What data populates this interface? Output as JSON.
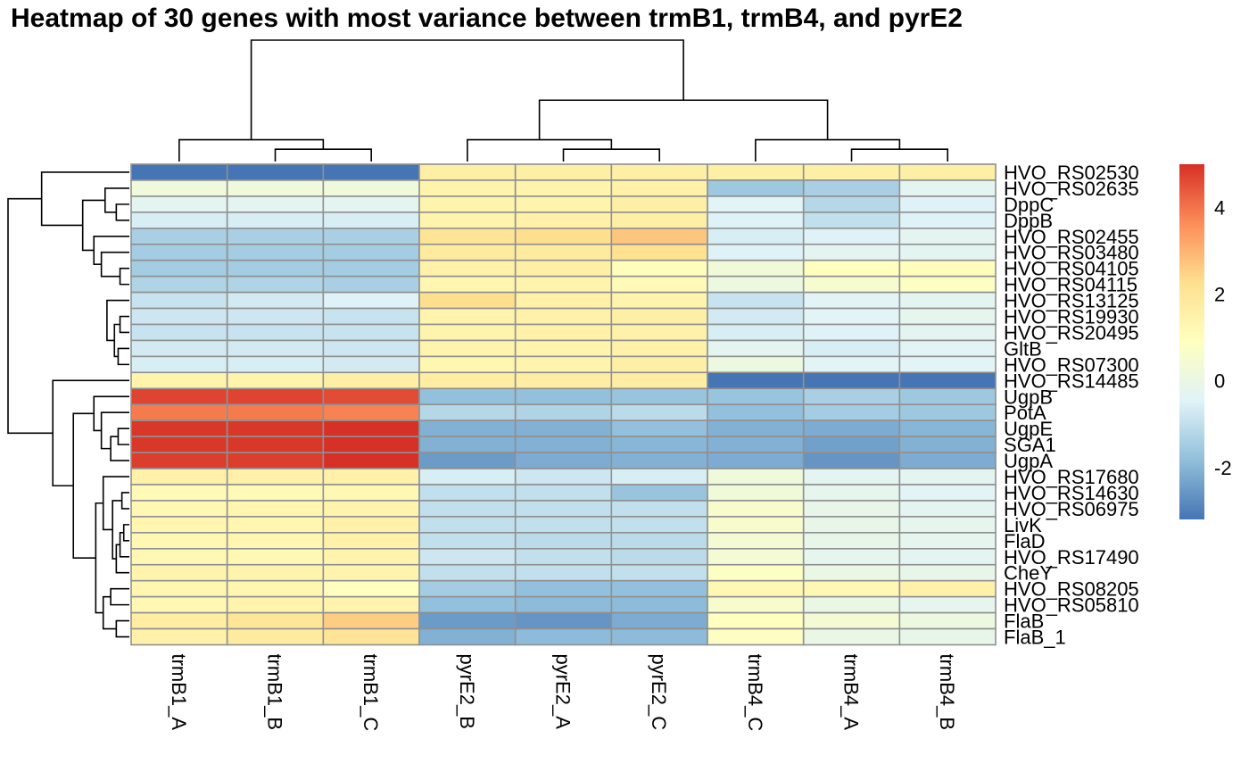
{
  "chart_data": {
    "type": "heatmap",
    "title": "Heatmap of 30 genes with most variance between trmB1, trmB4, and pyrE2",
    "columns": [
      "trmB1_A",
      "trmB1_B",
      "trmB1_C",
      "pyrE2_B",
      "pyrE2_A",
      "pyrE2_C",
      "trmB4_C",
      "trmB4_A",
      "trmB4_B"
    ],
    "rows": [
      "HVO_RS02530",
      "HVO_RS02635",
      "DppC",
      "DppB",
      "HVO_RS02455",
      "HVO_RS03480",
      "HVO_RS04105",
      "HVO_RS04115",
      "HVO_RS13125",
      "HVO_RS19930",
      "HVO_RS20495",
      "GltB",
      "HVO_RS07300",
      "HVO_RS14485",
      "UgpB",
      "PotA",
      "UgpE",
      "SGA1",
      "UgpA",
      "HVO_RS17680",
      "HVO_RS14630",
      "HVO_RS06975",
      "LivK",
      "FlaD",
      "HVO_RS17490",
      "CheY",
      "HVO_RS08205",
      "HVO_RS05810",
      "FlaB",
      "FlaB_1"
    ],
    "values": [
      [
        -3.2,
        -3.2,
        -3.2,
        1.6,
        1.6,
        1.6,
        1.6,
        1.6,
        1.6
      ],
      [
        0.2,
        0.2,
        0.2,
        1.4,
        1.4,
        1.5,
        -1.6,
        -1.4,
        -0.3
      ],
      [
        -0.3,
        -0.3,
        -0.3,
        1.4,
        1.4,
        1.6,
        -0.4,
        -1.2,
        -0.5
      ],
      [
        -0.6,
        -0.6,
        -0.6,
        1.4,
        1.5,
        1.6,
        -0.5,
        -1.0,
        -0.5
      ],
      [
        -1.4,
        -1.4,
        -1.4,
        2.1,
        2.3,
        2.7,
        -0.6,
        -0.5,
        -0.3
      ],
      [
        -1.5,
        -1.5,
        -1.5,
        1.8,
        1.8,
        2.2,
        -0.5,
        -0.3,
        -0.3
      ],
      [
        -1.5,
        -1.5,
        -1.5,
        1.5,
        1.6,
        1.0,
        0.3,
        0.9,
        1.0
      ],
      [
        -1.3,
        -1.3,
        -1.4,
        1.3,
        1.4,
        1.1,
        0.1,
        0.5,
        0.8
      ],
      [
        -0.9,
        -0.7,
        -0.5,
        2.3,
        1.5,
        1.4,
        -0.9,
        -0.4,
        -0.3
      ],
      [
        -0.8,
        -0.8,
        -0.9,
        1.4,
        1.5,
        1.6,
        -0.7,
        -0.4,
        -0.2
      ],
      [
        -0.9,
        -0.9,
        -0.9,
        1.4,
        1.5,
        1.5,
        -0.6,
        -0.5,
        -0.3
      ],
      [
        -0.7,
        -0.7,
        -0.8,
        1.4,
        1.4,
        1.5,
        -0.3,
        -0.6,
        -0.4
      ],
      [
        -0.6,
        -0.6,
        -0.7,
        1.3,
        1.4,
        1.6,
        0.1,
        -0.4,
        -0.4
      ],
      [
        1.4,
        1.4,
        1.6,
        1.7,
        1.7,
        1.7,
        -3.2,
        -3.2,
        -3.2
      ],
      [
        4.7,
        4.7,
        4.6,
        -1.8,
        -1.8,
        -1.7,
        -1.7,
        -1.4,
        -1.6
      ],
      [
        3.9,
        3.9,
        3.8,
        -1.2,
        -1.3,
        -1.1,
        -1.8,
        -1.5,
        -1.6
      ],
      [
        4.9,
        4.9,
        5.0,
        -2.1,
        -2.1,
        -1.8,
        -2.1,
        -2.2,
        -2.0
      ],
      [
        4.9,
        4.9,
        5.0,
        -2.1,
        -2.1,
        -2.0,
        -2.1,
        -2.4,
        -2.1
      ],
      [
        4.8,
        4.8,
        5.0,
        -2.5,
        -2.2,
        -2.1,
        -2.2,
        -2.6,
        -2.2
      ],
      [
        1.5,
        1.5,
        1.5,
        -0.6,
        -0.8,
        -0.6,
        0.2,
        -0.3,
        -0.3
      ],
      [
        1.1,
        1.1,
        1.2,
        -1.0,
        -1.0,
        -1.7,
        0.3,
        -0.2,
        -0.4
      ],
      [
        1.2,
        1.3,
        1.4,
        -1.0,
        -1.0,
        -1.0,
        0.6,
        -0.1,
        -0.3
      ],
      [
        1.3,
        1.3,
        1.5,
        -1.0,
        -1.0,
        -1.0,
        0.6,
        -0.1,
        -0.2
      ],
      [
        1.2,
        1.3,
        1.5,
        -1.0,
        -1.1,
        -1.1,
        0.4,
        -0.1,
        -0.2
      ],
      [
        1.2,
        1.2,
        1.4,
        -0.8,
        -1.0,
        -1.1,
        0.4,
        -0.2,
        -0.3
      ],
      [
        1.4,
        1.4,
        1.4,
        -1.0,
        -1.0,
        -1.0,
        0.8,
        0.0,
        -0.1
      ],
      [
        1.3,
        1.3,
        0.9,
        -1.5,
        -1.8,
        -1.8,
        1.2,
        1.2,
        1.5
      ],
      [
        1.2,
        1.4,
        1.4,
        -1.8,
        -1.9,
        -1.9,
        0.6,
        0.0,
        -0.2
      ],
      [
        1.7,
        2.0,
        2.6,
        -2.5,
        -2.6,
        -2.2,
        0.9,
        0.4,
        0.1
      ],
      [
        1.5,
        1.8,
        2.1,
        -2.1,
        -1.9,
        -1.9,
        0.8,
        0.0,
        -0.1
      ]
    ],
    "colorbar": {
      "ticks": [
        4,
        2,
        0,
        -2
      ],
      "range": [
        -3.2,
        5.0
      ]
    },
    "palette": [
      "#4575B4",
      "#91BFDB",
      "#E0F3F8",
      "#FFFFBF",
      "#FEE090",
      "#FC8D59",
      "#D73027"
    ],
    "cell_border_color": "#909090",
    "dendrogram_color": "#000000",
    "column_tree": [
      [
        1,
        2,
        0.55
      ],
      [
        0,
        1,
        0.97
      ],
      [
        7,
        8,
        0.55
      ],
      [
        6,
        7,
        0.97
      ],
      [
        4,
        5,
        0.55
      ],
      [
        3,
        4,
        0.97
      ],
      [
        3,
        6,
        2.73
      ],
      [
        0,
        3,
        5.4
      ]
    ],
    "row_tree": [
      [
        2,
        3,
        0.7
      ],
      [
        1,
        2,
        1.3
      ],
      [
        6,
        7,
        0.5
      ],
      [
        9,
        10,
        0.5
      ],
      [
        11,
        12,
        0.6
      ],
      [
        9,
        11,
        0.8
      ],
      [
        8,
        9,
        1.2
      ],
      [
        5,
        6,
        1.5
      ],
      [
        4,
        5,
        1.9
      ],
      [
        1,
        4,
        2.5
      ],
      [
        0,
        1,
        4.7
      ],
      [
        16,
        17,
        0.6
      ],
      [
        16,
        18,
        1.0
      ],
      [
        15,
        16,
        1.5
      ],
      [
        14,
        15,
        1.9
      ],
      [
        20,
        21,
        0.4
      ],
      [
        22,
        23,
        0.3
      ],
      [
        22,
        24,
        0.5
      ],
      [
        22,
        25,
        0.7
      ],
      [
        20,
        22,
        0.9
      ],
      [
        19,
        20,
        1.4
      ],
      [
        26,
        27,
        1.0
      ],
      [
        28,
        29,
        0.7
      ],
      [
        26,
        28,
        1.4
      ],
      [
        19,
        26,
        1.8
      ],
      [
        14,
        19,
        3.0
      ],
      [
        13,
        14,
        4.1
      ],
      [
        0,
        13,
        6.5
      ]
    ]
  }
}
